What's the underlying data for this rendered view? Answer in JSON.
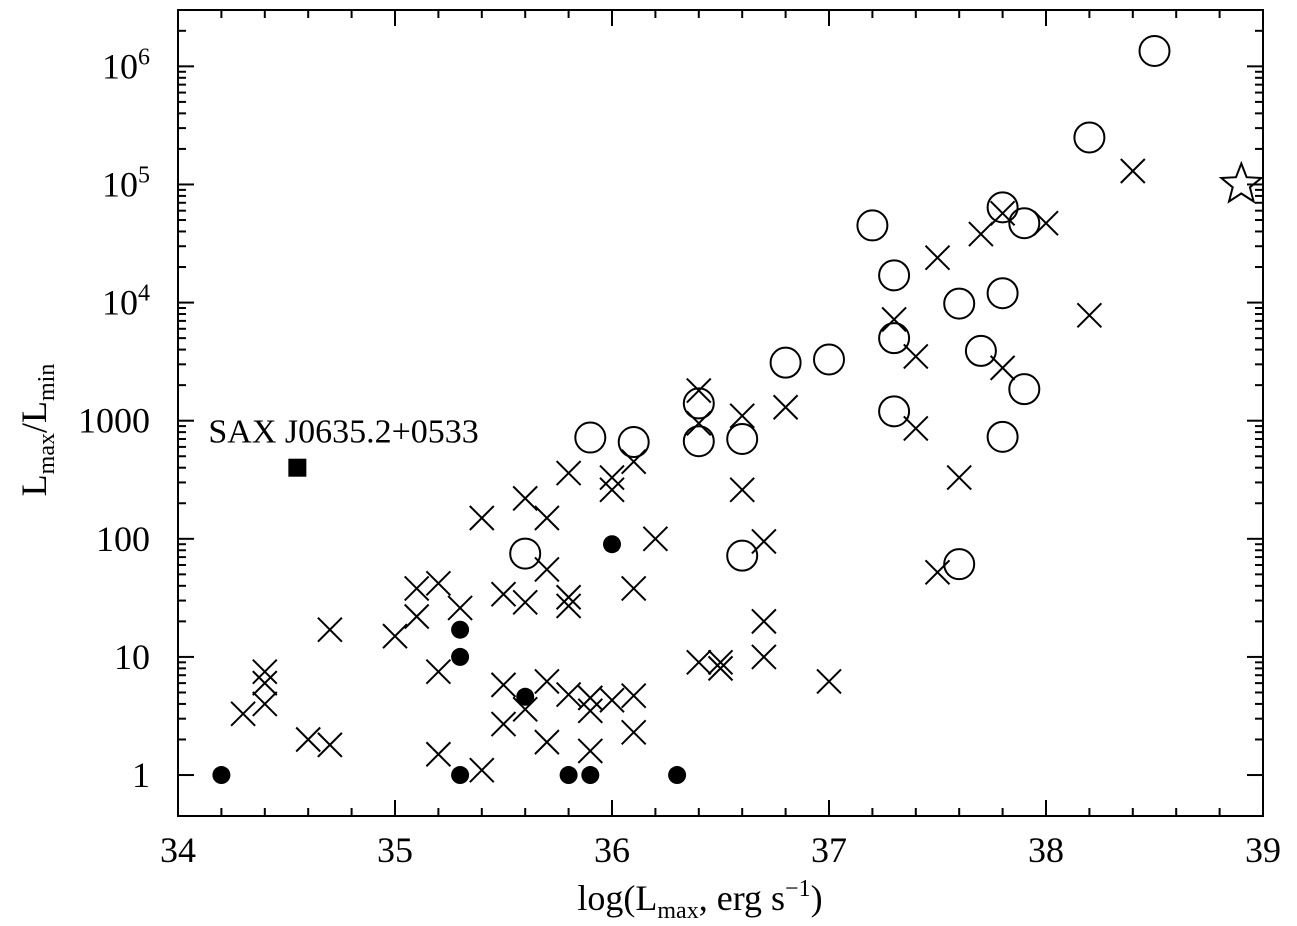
{
  "chart_data": {
    "type": "scatter",
    "xlabel": {
      "main": "log(L",
      "sub": "max",
      "rest": ", erg s",
      "sup": "−1",
      "close": ")"
    },
    "ylabel": {
      "a": "L",
      "a_sub": "max",
      "slash": "/L",
      "b_sub": "min"
    },
    "x_ticks": [
      "34",
      "35",
      "36",
      "37",
      "38",
      "39"
    ],
    "y_ticks": [
      {
        "v": 1,
        "base": "1",
        "exp": ""
      },
      {
        "v": 10,
        "base": "10",
        "exp": ""
      },
      {
        "v": 100,
        "base": "100",
        "exp": ""
      },
      {
        "v": 1000,
        "base": "1000",
        "exp": ""
      },
      {
        "v": 10000,
        "base": "10",
        "exp": "4"
      },
      {
        "v": 100000,
        "base": "10",
        "exp": "5"
      },
      {
        "v": 1000000,
        "base": "10",
        "exp": "6"
      }
    ],
    "xlim": [
      34,
      39
    ],
    "ylim": [
      0.45,
      3000000
    ],
    "y_scale": "log",
    "annotation": {
      "text": "SAX J0635.2+0533",
      "x": 34.14,
      "y": 830
    },
    "series": [
      {
        "marker": "cross",
        "points": [
          [
            34.3,
            3.3
          ],
          [
            34.4,
            4.0
          ],
          [
            34.4,
            6.0
          ],
          [
            34.4,
            7.5
          ],
          [
            34.6,
            2.0
          ],
          [
            34.7,
            1.8
          ],
          [
            34.7,
            17
          ],
          [
            35.0,
            15
          ],
          [
            35.1,
            22
          ],
          [
            35.1,
            38
          ],
          [
            35.2,
            42
          ],
          [
            35.2,
            7.5
          ],
          [
            35.2,
            1.5
          ],
          [
            35.3,
            26
          ],
          [
            35.4,
            1.1
          ],
          [
            35.4,
            150
          ],
          [
            35.5,
            34
          ],
          [
            35.5,
            5.8
          ],
          [
            35.5,
            2.7
          ],
          [
            35.6,
            220
          ],
          [
            35.6,
            29
          ],
          [
            35.6,
            3.6
          ],
          [
            35.7,
            150
          ],
          [
            35.7,
            55
          ],
          [
            35.7,
            6.2
          ],
          [
            35.7,
            1.9
          ],
          [
            35.8,
            360
          ],
          [
            35.8,
            32
          ],
          [
            35.8,
            27
          ],
          [
            35.8,
            4.8
          ],
          [
            35.9,
            4.5
          ],
          [
            35.9,
            3.5
          ],
          [
            35.9,
            1.6
          ],
          [
            36.0,
            330
          ],
          [
            36.0,
            260
          ],
          [
            36.0,
            4.3
          ],
          [
            36.1,
            450
          ],
          [
            36.1,
            38
          ],
          [
            36.1,
            4.7
          ],
          [
            36.1,
            2.3
          ],
          [
            36.2,
            100
          ],
          [
            36.4,
            1800
          ],
          [
            36.4,
            950
          ],
          [
            36.4,
            9.0
          ],
          [
            36.5,
            9.0
          ],
          [
            36.5,
            8.0
          ],
          [
            36.6,
            1100
          ],
          [
            36.6,
            260
          ],
          [
            36.7,
            95
          ],
          [
            36.7,
            20
          ],
          [
            36.7,
            10
          ],
          [
            36.8,
            1300
          ],
          [
            37.0,
            6.2
          ],
          [
            37.3,
            7200
          ],
          [
            37.4,
            3500
          ],
          [
            37.4,
            860
          ],
          [
            37.5,
            24000
          ],
          [
            37.5,
            52
          ],
          [
            37.6,
            330
          ],
          [
            37.7,
            38000
          ],
          [
            37.8,
            57000
          ],
          [
            37.8,
            2800
          ],
          [
            38.0,
            47000
          ],
          [
            38.2,
            7800
          ],
          [
            38.4,
            130000
          ]
        ]
      },
      {
        "marker": "open-circle",
        "points": [
          [
            35.6,
            75
          ],
          [
            35.9,
            720
          ],
          [
            36.1,
            660
          ],
          [
            36.4,
            1400
          ],
          [
            36.4,
            670
          ],
          [
            36.6,
            700
          ],
          [
            36.6,
            72
          ],
          [
            36.8,
            3100
          ],
          [
            37.0,
            3300
          ],
          [
            37.2,
            45000
          ],
          [
            37.3,
            17000
          ],
          [
            37.3,
            5000
          ],
          [
            37.3,
            1200
          ],
          [
            37.6,
            9800
          ],
          [
            37.6,
            61
          ],
          [
            37.7,
            3900
          ],
          [
            37.8,
            64000
          ],
          [
            37.8,
            12000
          ],
          [
            37.8,
            730
          ],
          [
            37.9,
            47000
          ],
          [
            37.9,
            1850
          ],
          [
            38.2,
            250000
          ],
          [
            38.5,
            1350000
          ]
        ]
      },
      {
        "marker": "filled-circle",
        "points": [
          [
            34.2,
            1.0
          ],
          [
            35.3,
            17
          ],
          [
            35.3,
            10
          ],
          [
            35.3,
            1.0
          ],
          [
            35.6,
            4.6
          ],
          [
            35.8,
            1.0
          ],
          [
            35.9,
            1.0
          ],
          [
            36.0,
            90
          ],
          [
            36.3,
            1.0
          ]
        ]
      },
      {
        "marker": "filled-square",
        "points": [
          [
            34.55,
            400
          ]
        ]
      },
      {
        "marker": "open-star",
        "points": [
          [
            38.9,
            100000
          ]
        ]
      }
    ]
  }
}
